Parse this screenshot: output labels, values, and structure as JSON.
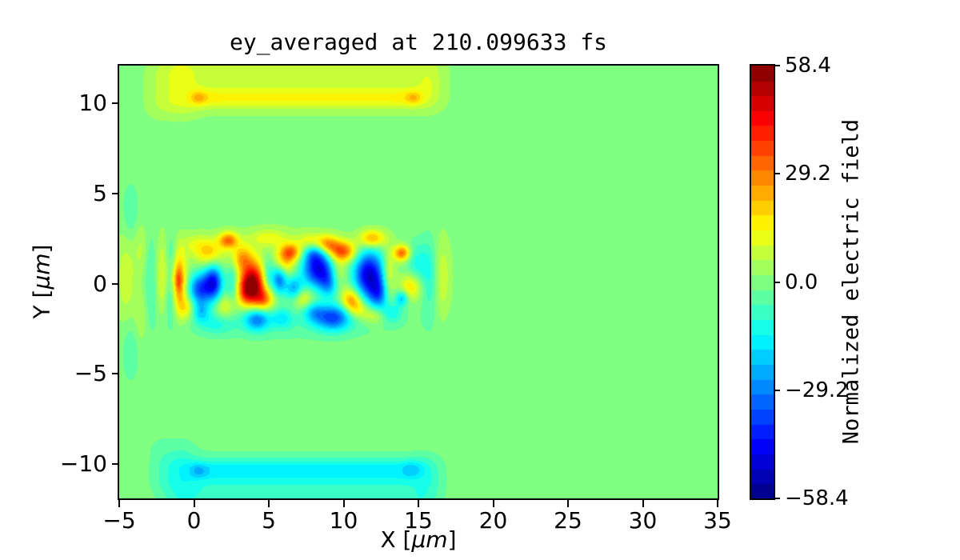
{
  "figure": {
    "background_color": "#ffffff",
    "title": "ey_averaged at 210.099633 fs"
  },
  "chart_data": {
    "type": "heatmap",
    "title": "ey_averaged at 210.099633 fs",
    "xlabel": {
      "pre": "X [",
      "unit": "μm",
      "post": "]"
    },
    "ylabel": {
      "pre": "Y [",
      "unit": "μm",
      "post": "]"
    },
    "xlim": [
      -5,
      35
    ],
    "ylim": [
      -11.9,
      12.1
    ],
    "xticks": [
      {
        "v": -5,
        "label": "−5"
      },
      {
        "v": 0,
        "label": "0"
      },
      {
        "v": 5,
        "label": "5"
      },
      {
        "v": 10,
        "label": "10"
      },
      {
        "v": 15,
        "label": "15"
      },
      {
        "v": 20,
        "label": "20"
      },
      {
        "v": 25,
        "label": "25"
      },
      {
        "v": 30,
        "label": "30"
      },
      {
        "v": 35,
        "label": "35"
      }
    ],
    "yticks": [
      {
        "v": 10,
        "label": "10"
      },
      {
        "v": 5,
        "label": "5"
      },
      {
        "v": 0,
        "label": "0"
      },
      {
        "v": -5,
        "label": "−5"
      },
      {
        "v": -10,
        "label": "−10"
      }
    ],
    "colorbar": {
      "label": "Normalized electric field",
      "vmin": -58.4,
      "vmax": 58.4,
      "levels": 29,
      "colormap": "jet",
      "ticks": [
        {
          "v": 58.4,
          "label": "58.4"
        },
        {
          "v": 29.2,
          "label": "29.2"
        },
        {
          "v": 0.0,
          "label": "0.0"
        },
        {
          "v": -29.2,
          "label": "−29.2"
        },
        {
          "v": -58.4,
          "label": "−58.4"
        }
      ]
    },
    "background_value": 0,
    "background_color_hint": "#80ff80",
    "field_features": [
      {
        "t": "r",
        "x": 7.2,
        "y": 11.35,
        "w": 16.4,
        "h": 2.1,
        "ex": 1.0,
        "ey": 0.6,
        "a": 7.5
      },
      {
        "t": "r",
        "x": 7.5,
        "y": 10.32,
        "w": 14.2,
        "h": 0.28,
        "ex": 0.55,
        "ey": 0.28,
        "a": 7
      },
      {
        "t": "r",
        "x": -1.5,
        "y": 10.7,
        "w": 1.5,
        "h": 1.6,
        "ex": 0.8,
        "ey": 0.6,
        "a": 4.2
      },
      {
        "t": "r",
        "x": 7.1,
        "y": -11.25,
        "w": 15.8,
        "h": 2.0,
        "ex": 0.9,
        "ey": 0.55,
        "a": -9.5
      },
      {
        "t": "r",
        "x": 7.3,
        "y": -10.38,
        "w": 13.8,
        "h": 0.28,
        "ex": 0.55,
        "ey": 0.28,
        "a": -6.5
      },
      {
        "t": "r",
        "x": -1.4,
        "y": -10.1,
        "w": 1.2,
        "h": 1.5,
        "ex": 0.7,
        "ey": 0.6,
        "a": -4.4
      },
      {
        "t": "g",
        "x": 0.35,
        "y": 10.32,
        "sx": 0.4,
        "sy": 0.22,
        "a": 9
      },
      {
        "t": "g",
        "x": 14.65,
        "y": 10.32,
        "sx": 0.4,
        "sy": 0.22,
        "a": 9
      },
      {
        "t": "g",
        "x": 0.35,
        "y": -10.38,
        "sx": 0.45,
        "sy": 0.26,
        "a": -7
      },
      {
        "t": "g",
        "x": 14.7,
        "y": -10.3,
        "sx": 0.5,
        "sy": 0.33,
        "a": -7
      },
      {
        "t": "g",
        "x": 15.9,
        "y": -10.8,
        "sx": 0.6,
        "sy": 0.8,
        "a": -4
      },
      {
        "t": "g",
        "x": 15.7,
        "y": 11.0,
        "sx": 0.6,
        "sy": 0.7,
        "a": 3.5
      },
      {
        "t": "g",
        "x": -4.55,
        "y": 0.3,
        "sx": 0.45,
        "sy": 1.9,
        "a": 8
      },
      {
        "t": "g",
        "x": -4.25,
        "y": 3.9,
        "sx": 0.38,
        "sy": 1.1,
        "a": -6.5
      },
      {
        "t": "g",
        "x": -4.25,
        "y": -3.7,
        "sx": 0.38,
        "sy": 1.1,
        "a": -6.5
      },
      {
        "t": "g",
        "x": -3.55,
        "y": 2.0,
        "sx": 0.32,
        "sy": 1.0,
        "a": 6
      },
      {
        "t": "g",
        "x": -3.55,
        "y": -1.9,
        "sx": 0.32,
        "sy": 1.0,
        "a": 6
      },
      {
        "t": "g",
        "x": -2.85,
        "y": 0.3,
        "sx": 0.35,
        "sy": 1.7,
        "a": -8
      },
      {
        "t": "g",
        "x": -2.15,
        "y": 0.4,
        "sx": 0.3,
        "sy": 1.5,
        "a": 10
      },
      {
        "t": "g",
        "x": -1.55,
        "y": -0.7,
        "sx": 0.28,
        "sy": 1.0,
        "a": -10
      },
      {
        "t": "g",
        "x": -1.5,
        "y": 1.6,
        "sx": 0.26,
        "sy": 0.8,
        "a": -8
      },
      {
        "t": "g",
        "x": 6.0,
        "y": 0.6,
        "sx": 5.5,
        "sy": 1.5,
        "a": 5.5
      },
      {
        "t": "g",
        "x": 6.5,
        "y": -2.1,
        "sx": 5.0,
        "sy": 0.7,
        "a": -5.5
      },
      {
        "t": "g",
        "x": -1.0,
        "y": 0.1,
        "sx": 0.33,
        "sy": 1.15,
        "a": 28
      },
      {
        "t": "g",
        "x": -1.05,
        "y": 0.2,
        "sx": 0.17,
        "sy": 0.4,
        "a": 9
      },
      {
        "t": "g",
        "x": -0.45,
        "y": -1.35,
        "sx": 0.4,
        "sy": 0.45,
        "a": 15
      },
      {
        "t": "g",
        "x": 0.35,
        "y": -0.3,
        "sx": 0.5,
        "sy": 0.65,
        "a": -36
      },
      {
        "t": "g",
        "x": 1.3,
        "y": 0.05,
        "sx": 0.45,
        "sy": 0.7,
        "a": -46
      },
      {
        "t": "g",
        "x": 0.45,
        "y": -1.6,
        "sx": 0.45,
        "sy": 0.4,
        "a": -16
      },
      {
        "t": "g",
        "x": 1.0,
        "y": 1.75,
        "sx": 0.6,
        "sy": 0.5,
        "a": 18
      },
      {
        "t": "g",
        "x": 2.3,
        "y": 2.4,
        "sx": 0.45,
        "sy": 0.32,
        "a": 30
      },
      {
        "t": "g",
        "x": 2.1,
        "y": -1.25,
        "sx": 0.5,
        "sy": 0.45,
        "a": 13
      },
      {
        "t": "g",
        "x": 2.55,
        "y": 0.1,
        "sx": 0.3,
        "sy": 0.9,
        "a": -15
      },
      {
        "t": "g",
        "x": 3.2,
        "y": 1.45,
        "sx": 0.5,
        "sy": 0.5,
        "a": 20
      },
      {
        "t": "g",
        "x": 3.9,
        "y": 0.0,
        "sx": 0.55,
        "sy": 0.78,
        "a": 54
      },
      {
        "t": "g",
        "x": 3.45,
        "y": -0.5,
        "sx": 0.4,
        "sy": 0.5,
        "a": 16
      },
      {
        "t": "g",
        "x": 4.7,
        "y": -0.85,
        "sx": 0.45,
        "sy": 0.45,
        "a": 26
      },
      {
        "t": "g",
        "x": 4.2,
        "y": -1.95,
        "sx": 0.6,
        "sy": 0.45,
        "a": -28
      },
      {
        "t": "g",
        "x": 4.95,
        "y": 0.5,
        "sx": 0.3,
        "sy": 0.75,
        "a": -16
      },
      {
        "t": "g",
        "x": 5.7,
        "y": 0.25,
        "sx": 0.36,
        "sy": 0.6,
        "a": -34
      },
      {
        "t": "g",
        "x": 6.0,
        "y": 1.1,
        "sx": 0.45,
        "sy": 0.45,
        "a": 16
      },
      {
        "t": "g",
        "x": 6.45,
        "y": 1.75,
        "sx": 0.5,
        "sy": 0.35,
        "a": 30
      },
      {
        "t": "g",
        "x": 6.7,
        "y": -0.3,
        "sx": 0.42,
        "sy": 0.5,
        "a": -28
      },
      {
        "t": "g",
        "x": 7.2,
        "y": -0.8,
        "sx": 0.5,
        "sy": 0.4,
        "a": 16
      },
      {
        "t": "g",
        "x": 5.9,
        "y": -1.9,
        "sx": 0.5,
        "sy": 0.4,
        "a": -13
      },
      {
        "t": "g",
        "x": 8.3,
        "y": 0.8,
        "sx": 0.78,
        "sy": 0.75,
        "a": -50
      },
      {
        "t": "g",
        "x": 8.0,
        "y": 1.7,
        "sx": 0.5,
        "sy": 0.4,
        "a": -16
      },
      {
        "t": "g",
        "x": 9.05,
        "y": -0.05,
        "sx": 0.45,
        "sy": 0.55,
        "a": -20
      },
      {
        "t": "g",
        "x": 7.8,
        "y": 2.35,
        "sx": 0.6,
        "sy": 0.35,
        "a": 14
      },
      {
        "t": "g",
        "x": 8.9,
        "y": 2.2,
        "sx": 0.5,
        "sy": 0.35,
        "a": 24
      },
      {
        "t": "g",
        "x": 9.9,
        "y": 1.8,
        "sx": 0.65,
        "sy": 0.4,
        "a": 34
      },
      {
        "t": "g",
        "x": 9.6,
        "y": 0.6,
        "sx": 0.4,
        "sy": 0.6,
        "a": 12
      },
      {
        "t": "g",
        "x": 9.3,
        "y": -1.85,
        "sx": 0.85,
        "sy": 0.5,
        "a": -34
      },
      {
        "t": "g",
        "x": 8.0,
        "y": -1.55,
        "sx": 0.5,
        "sy": 0.4,
        "a": -16
      },
      {
        "t": "g",
        "x": 10.5,
        "y": -0.9,
        "sx": 0.45,
        "sy": 0.45,
        "a": 26
      },
      {
        "t": "g",
        "x": 11.0,
        "y": -1.45,
        "sx": 0.5,
        "sy": 0.4,
        "a": 16
      },
      {
        "t": "g",
        "x": 11.7,
        "y": 0.5,
        "sx": 0.75,
        "sy": 0.95,
        "a": -52
      },
      {
        "t": "g",
        "x": 12.35,
        "y": -0.6,
        "sx": 0.45,
        "sy": 0.6,
        "a": -24
      },
      {
        "t": "g",
        "x": 11.9,
        "y": 2.5,
        "sx": 0.6,
        "sy": 0.35,
        "a": 26
      },
      {
        "t": "g",
        "x": 12.1,
        "y": -1.75,
        "sx": 0.5,
        "sy": 0.35,
        "a": 13
      },
      {
        "t": "g",
        "x": 13.0,
        "y": 0.5,
        "sx": 0.3,
        "sy": 0.95,
        "a": 15
      },
      {
        "t": "g",
        "x": 13.9,
        "y": 1.7,
        "sx": 0.38,
        "sy": 0.3,
        "a": 32
      },
      {
        "t": "g",
        "x": 14.5,
        "y": -0.15,
        "sx": 0.5,
        "sy": 0.5,
        "a": 18
      },
      {
        "t": "g",
        "x": 14.9,
        "y": 1.1,
        "sx": 0.55,
        "sy": 0.85,
        "a": -13
      },
      {
        "t": "g",
        "x": 13.9,
        "y": -0.8,
        "sx": 0.3,
        "sy": 0.3,
        "a": -22
      },
      {
        "t": "g",
        "x": 15.75,
        "y": 0.3,
        "sx": 0.4,
        "sy": 1.5,
        "a": -10
      },
      {
        "t": "g",
        "x": 16.6,
        "y": 0.3,
        "sx": 0.38,
        "sy": 1.6,
        "a": 8.5
      },
      {
        "t": "g",
        "x": 13.2,
        "y": -1.6,
        "sx": 0.5,
        "sy": 0.4,
        "a": -13
      },
      {
        "t": "g",
        "x": 5.0,
        "y": 2.55,
        "sx": 0.9,
        "sy": 0.35,
        "a": 11
      },
      {
        "t": "g",
        "x": 0.0,
        "y": 2.2,
        "sx": 0.6,
        "sy": 0.4,
        "a": 8
      },
      {
        "t": "g",
        "x": 1.5,
        "y": -2.25,
        "sx": 0.8,
        "sy": 0.4,
        "a": -9
      }
    ]
  }
}
